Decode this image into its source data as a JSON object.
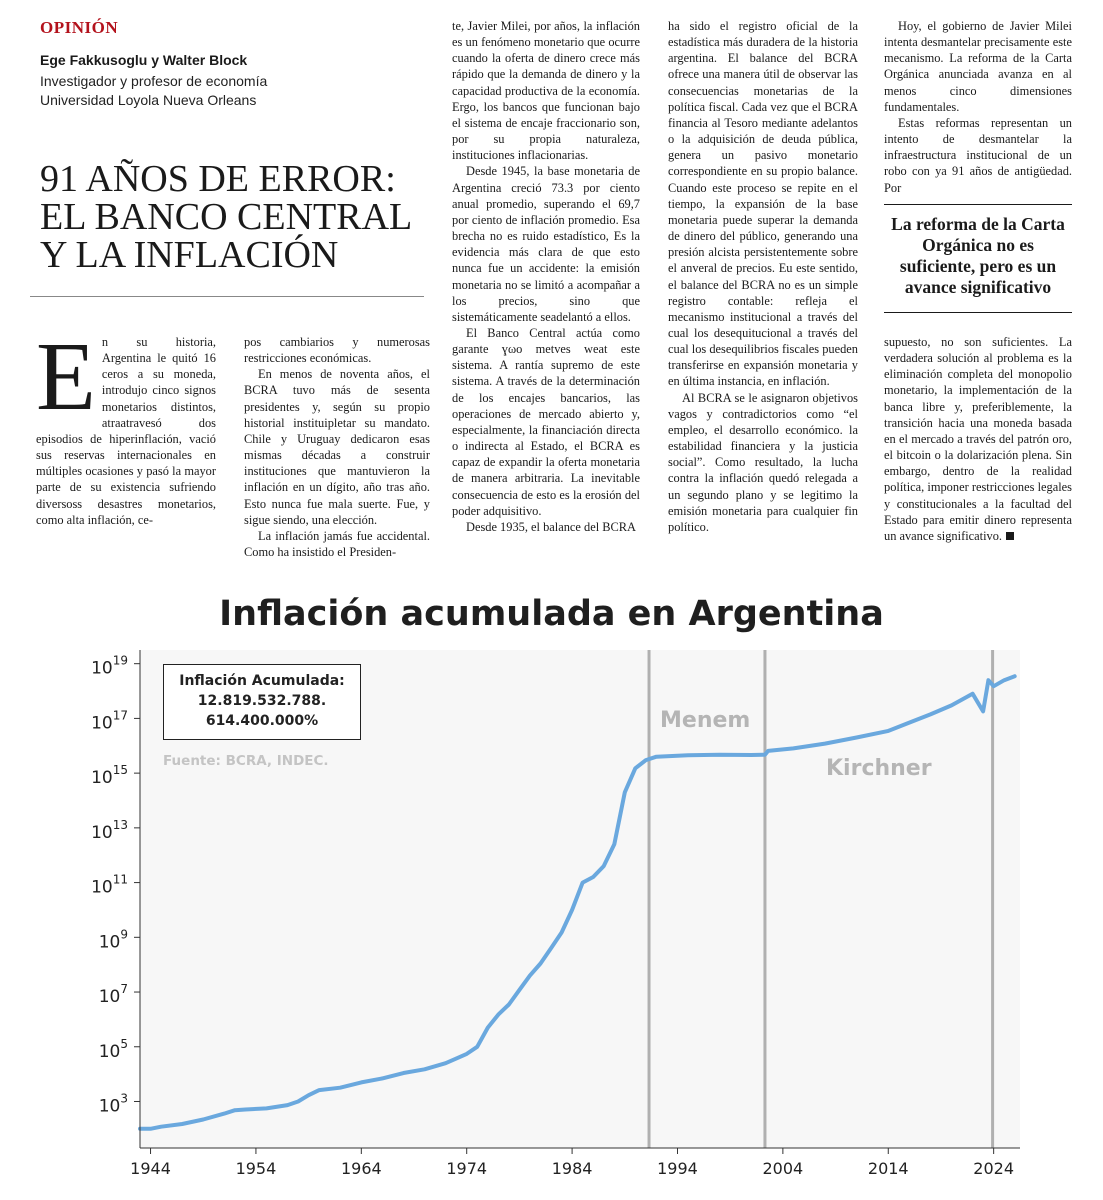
{
  "article": {
    "section": "OPINIÓN",
    "authors": "Ege Fakkusoglu y Walter Block",
    "affiliation_1": "Investigador y profesor de economía",
    "affiliation_2": "Universidad Loyola Nueva Orleans",
    "headline_1": "91 AÑOS DE ERROR:",
    "headline_2": "EL BANCO CENTRAL",
    "headline_3": "Y LA INFLACIÓN",
    "dropcap": "E",
    "col1_lead": "n su historia, Argentina le quitó 16 ceros a su moneda, introdujo cinco signos monetarios distintos, atraatravesó dos episodios de hiperinflación, vació sus reservas internacionales en múltiples ocasiones y pasó la mayor parte de su existencia sufriendo diversoss desastres monetarios, como alta inflación, ce-",
    "col2_p1": "pos cambiarios y numerosas restricciones económicas.",
    "col2_p2": "En menos de noventa años, el BCRA tuvo más de sesenta presidentes y, según su propio historial instituipletar su mandato. Chile y Uruguay dedicaron esas mismas décadas a construir instituciones que mantuvieron la inflación en un dígito, año tras año. Esto nunca fue mala suerte. Fue, y sigue siendo, una elección.",
    "col2_p3": "La inflación jamás fue accidental. Como ha insistido el Presiden-",
    "col3_p1": "te, Javier Milei, por años, la inflación es un fenómeno monetario que ocurre cuando la oferta de dinero crece más rápido que la demanda de dinero y la capacidad productiva de la economía. Ergo, los bancos que funcionan bajo el sistema de encaje fraccionario son, por su propia naturaleza, instituciones inflacionarias.",
    "col3_p2": "Desde 1945, la base monetaria de Argentina creció 73.3 por ciento anual promedio, superando el 69,7 por ciento de inflación promedio. Esa brecha no es ruido estadístico, Es la evidencia más clara de que esto nunca fue un accidente: la emisión monetaria no se limitó a acompañar a los precios, sino que sistemáticamente seadelantó a ellos.",
    "col3_p3": "El Banco Central actúa como garante ɣωo metves weat este sistema. A rantía supremo de este sistema. A través de la determinación de los encajes bancarios, las operaciones de mercado abierto y, especialmente, la financiación directa o indirecta al Estado, el BCRA es capaz de expandir la oferta monetaria de manera arbitraria. La inevitable consecuencia de esto es la erosión del poder adquisitivo.",
    "col3_p4": "Desde 1935, el balance del BCRA",
    "col4_p1": "ha sido el registro oficial de la estadística más duradera de la historia argentina. El balance del BCRA ofrece una manera útil de observar las consecuencias monetarias de la política fiscal. Cada vez que el BCRA financia al Tesoro mediante adelantos o la adquisición de deuda pública, genera un pasivo monetario correspondiente en su propio balance. Cuando este proceso se repite en el tiempo, la expansión de la base monetaria puede superar la demanda de dinero del público, generando una presión alcista persistentemente sobre el anveral de precios. Eu este sentido, el balance del BCRA no es un simple registro contable: refleja el mecanismo institucional a través del cual los desequitucional a través del cual los desequilibrios fiscales pueden transferirse en expansión monetaria y en última instancia, en inflación.",
    "col4_p2": "Al BCRA se le asignaron objetivos vagos y contradictorios como “el empleo, el desarrollo económico. la estabilidad financiera y la justicia social”. Como resultado, la lucha contra la inflación quedó relegada a un segundo plano y se legitimo la emisión monetaria para cualquier fin político.",
    "col5_p1": "Hoy, el gobierno de Javier Milei intenta desmantelar precisamente este mecanismo. La reforma de la Carta Orgánica anunciada avanza en al menos cinco dimensiones fundamentales.",
    "col5_p2": "Estas reformas representan un intento de desmantelar la infraestructura institucional de un robo con ya 91 años de antigüedad. Por",
    "pullquote": "La reforma de la Carta Orgánica no es suficiente, pero es un avance significativo",
    "col5_p3": "supuesto, no son suficientes. La verdadera solución al problema es la eliminación completa del monopolio monetario, la implementación de la banca libre y, preferiblemente, la transición hacia una moneda basada en el mercado a través del patrón oro, el bitcoin o la dolarización plena. Sin embargo, dentro de la realidad política, imponer restricciones legales y constitucionales a la facultad del Estado para emitir dinero representa un avance significativo."
  },
  "chart_data": {
    "type": "line",
    "title": "Inflación acumulada en Argentina",
    "box_label": "Inflación Acumulada:",
    "box_value_1": "12.819.532.788.",
    "box_value_2": "614.400.000%",
    "source": "Fuente: BCRA, INDEC.",
    "annotations": [
      "Menem",
      "Kirchner"
    ],
    "line_color": "#6aa8de",
    "background": "#f7f7f7",
    "xlim": [
      1943,
      2026.5
    ],
    "ylim_log10": [
      1.3,
      19.5
    ],
    "y_scale": "log",
    "x_ticks": [
      1944,
      1954,
      1964,
      1974,
      1984,
      1994,
      2004,
      2014,
      2024
    ],
    "y_ticks": [
      {
        "exp": 3,
        "label": "10",
        "sup": "3"
      },
      {
        "exp": 5,
        "label": "10",
        "sup": "5"
      },
      {
        "exp": 7,
        "label": "10",
        "sup": "7"
      },
      {
        "exp": 9,
        "label": "10",
        "sup": "9"
      },
      {
        "exp": 11,
        "label": "10",
        "sup": "11"
      },
      {
        "exp": 13,
        "label": "10",
        "sup": "13"
      },
      {
        "exp": 15,
        "label": "10",
        "sup": "15"
      },
      {
        "exp": 17,
        "label": "10",
        "sup": "17"
      },
      {
        "exp": 19,
        "label": "10",
        "sup": "19"
      }
    ],
    "vlines": [
      1991.3,
      2002.3,
      2023.9
    ],
    "series": [
      {
        "points": [
          [
            1943.0,
            100
          ],
          [
            1944.0,
            100
          ],
          [
            1945.0,
            120
          ],
          [
            1947.0,
            150
          ],
          [
            1949.0,
            220
          ],
          [
            1951.0,
            360
          ],
          [
            1952.0,
            480
          ],
          [
            1953.0,
            510
          ],
          [
            1955.0,
            560
          ],
          [
            1957.0,
            740
          ],
          [
            1958.0,
            1000
          ],
          [
            1959.0,
            1700
          ],
          [
            1960.0,
            2600
          ],
          [
            1962.0,
            3200
          ],
          [
            1964.0,
            5000
          ],
          [
            1966.0,
            7000
          ],
          [
            1968.0,
            11000
          ],
          [
            1970.0,
            15000
          ],
          [
            1972.0,
            25000
          ],
          [
            1973.0,
            37000
          ],
          [
            1974.0,
            55000
          ],
          [
            1975.0,
            100000
          ],
          [
            1976.0,
            500000
          ],
          [
            1977.0,
            1500000
          ],
          [
            1978.0,
            3500000
          ],
          [
            1979.0,
            12000000.0
          ],
          [
            1980.0,
            40000000.0
          ],
          [
            1981.0,
            110000000.0
          ],
          [
            1982.0,
            400000000.0
          ],
          [
            1983.0,
            1500000000.0
          ],
          [
            1984.0,
            10000000000.0
          ],
          [
            1985.0,
            100000000000.0
          ],
          [
            1986.0,
            160000000000.0
          ],
          [
            1987.0,
            400000000000.0
          ],
          [
            1988.0,
            2500000000000.0
          ],
          [
            1989.0,
            200000000000000.0
          ],
          [
            1990.0,
            1500000000000000.0
          ],
          [
            1991.0,
            3000000000000000.0
          ],
          [
            1992.0,
            4000000000000000.0
          ],
          [
            1995.0,
            4500000000000000.0
          ],
          [
            1998.0,
            4700000000000000.0
          ],
          [
            2001.0,
            4600000000000000.0
          ],
          [
            2002.3,
            4700000000000000.0
          ],
          [
            2002.6,
            6500000000000000.0
          ],
          [
            2005.0,
            8000000000000000.0
          ],
          [
            2008.0,
            1.2e+16
          ],
          [
            2011.0,
            2e+16
          ],
          [
            2014.0,
            3.5e+16
          ],
          [
            2016.0,
            7e+16
          ],
          [
            2018.0,
            1.4e+17
          ],
          [
            2020.0,
            3e+17
          ],
          [
            2022.0,
            8e+17
          ],
          [
            2023.0,
            1.8e+17
          ],
          [
            2023.5,
            2.5e+18
          ],
          [
            2024.0,
            1.5e+18
          ],
          [
            2025.0,
            2.5e+18
          ],
          [
            2026.0,
            3.5e+18
          ]
        ]
      }
    ]
  }
}
